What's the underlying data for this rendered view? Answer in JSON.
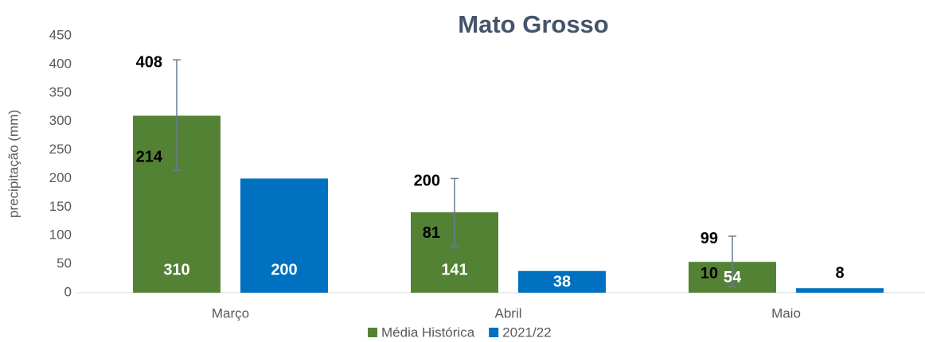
{
  "chart_data": {
    "type": "bar",
    "title": "Mato Grosso",
    "y_label": "precipitação (mm)",
    "categories": [
      "Março",
      "Abril",
      "Maio"
    ],
    "series": [
      {
        "name": "Média Histórica",
        "color": "#548235",
        "values": [
          310,
          141,
          54
        ],
        "range_low": [
          214,
          81,
          10
        ],
        "range_high": [
          408,
          200,
          99
        ]
      },
      {
        "name": "2021/22",
        "color": "#0070c0",
        "values": [
          200,
          38,
          8
        ]
      }
    ],
    "ylim": [
      0,
      450
    ],
    "yticks": [
      0,
      50,
      100,
      150,
      200,
      250,
      300,
      350,
      400,
      450
    ],
    "grid": false,
    "legend": "bottom"
  }
}
